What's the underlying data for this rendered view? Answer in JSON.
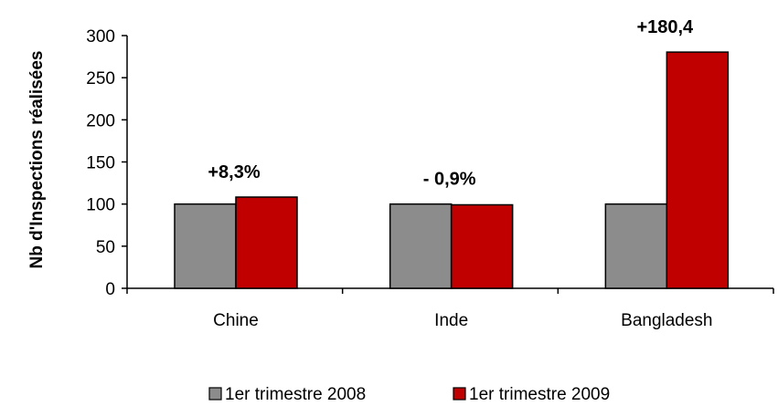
{
  "chart_data": {
    "type": "bar",
    "categories": [
      "Chine",
      "Inde",
      "Bangladesh"
    ],
    "series": [
      {
        "name": "1er trimestre 2008",
        "values": [
          100,
          100,
          100
        ],
        "color": "#8c8c8c"
      },
      {
        "name": "1er trimestre 2009",
        "values": [
          108.3,
          99.1,
          280.4
        ],
        "color": "#c00000"
      }
    ],
    "annotations": [
      "+8,3%",
      "- 0,9%",
      "+180,4"
    ],
    "ylabel": "Nb d'Inspections réalisées",
    "xlabel": "",
    "ylim": [
      0,
      300
    ],
    "yticks": [
      0,
      50,
      100,
      150,
      200,
      250,
      300
    ],
    "yticklabels": [
      "0",
      "50",
      "100",
      "150",
      "200",
      "250",
      "300"
    ],
    "grid": false,
    "legend": "bottom"
  }
}
